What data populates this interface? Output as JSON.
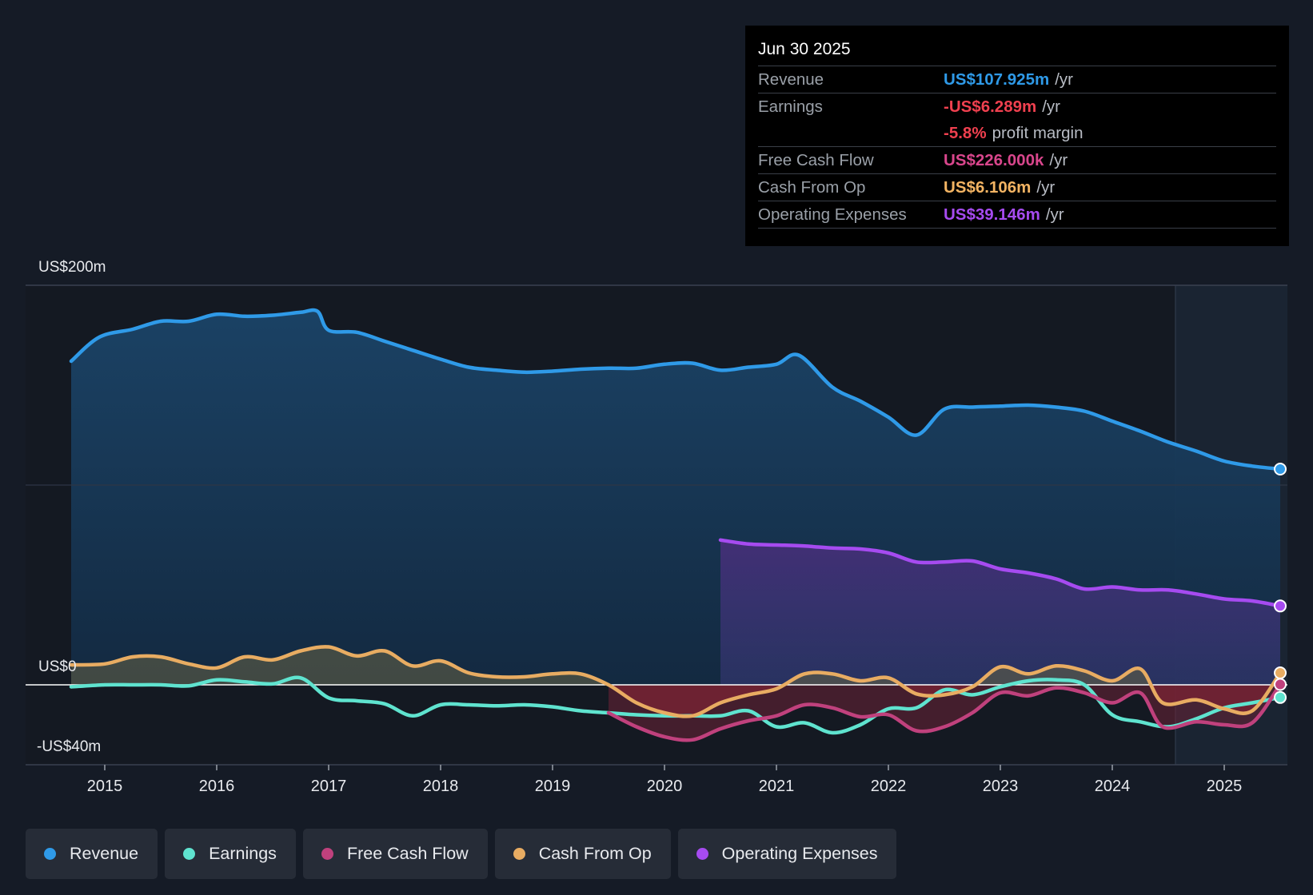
{
  "tooltip": {
    "date": "Jun 30 2025",
    "rows": [
      {
        "label": "Revenue",
        "value": "US$107.925m",
        "unit": "/yr",
        "color": "#2f9ae8"
      },
      {
        "label": "Earnings",
        "value": "-US$6.289m",
        "unit": "/yr",
        "color": "#f0404f"
      },
      {
        "label": "",
        "value": "-5.8%",
        "unit": "profit margin",
        "color": "#f0404f"
      },
      {
        "label": "Free Cash Flow",
        "value": "US$226.000k",
        "unit": "/yr",
        "color": "#d9468c"
      },
      {
        "label": "Cash From Op",
        "value": "US$6.106m",
        "unit": "/yr",
        "color": "#f3b463"
      },
      {
        "label": "Operating Expenses",
        "value": "US$39.146m",
        "unit": "/yr",
        "color": "#a64bf0"
      }
    ]
  },
  "legend": [
    {
      "label": "Revenue",
      "color": "#2f9ae8"
    },
    {
      "label": "Earnings",
      "color": "#5fe3cf"
    },
    {
      "label": "Free Cash Flow",
      "color": "#c0417d"
    },
    {
      "label": "Cash From Op",
      "color": "#e8ac62"
    },
    {
      "label": "Operating Expenses",
      "color": "#a64bf0"
    }
  ],
  "chart_data": {
    "type": "line",
    "title": "",
    "xlabel": "",
    "ylabel": "",
    "ylim": [
      -40,
      200
    ],
    "xlim": [
      2014.5,
      2025.5
    ],
    "y_tick_labels": [
      "US$200m",
      "US$0",
      "-US$40m"
    ],
    "x_tick_labels": [
      "2015",
      "2016",
      "2017",
      "2018",
      "2019",
      "2020",
      "2021",
      "2022",
      "2023",
      "2024",
      "2025"
    ],
    "forecast_start": 2024.5,
    "series": [
      {
        "name": "Revenue",
        "color": "#2f9ae8",
        "area": true,
        "points": [
          [
            2014.7,
            162
          ],
          [
            2014.95,
            174
          ],
          [
            2015.25,
            178
          ],
          [
            2015.5,
            182
          ],
          [
            2015.75,
            182
          ],
          [
            2016.0,
            185.5
          ],
          [
            2016.25,
            184.5
          ],
          [
            2016.5,
            185
          ],
          [
            2016.75,
            186.5
          ],
          [
            2016.9,
            187
          ],
          [
            2017.0,
            177.5
          ],
          [
            2017.25,
            176.5
          ],
          [
            2017.5,
            172
          ],
          [
            2017.75,
            167.5
          ],
          [
            2018.0,
            163
          ],
          [
            2018.25,
            159
          ],
          [
            2018.5,
            157.5
          ],
          [
            2018.75,
            156.5
          ],
          [
            2019.0,
            157
          ],
          [
            2019.25,
            158
          ],
          [
            2019.5,
            158.5
          ],
          [
            2019.75,
            158.5
          ],
          [
            2020.0,
            160.5
          ],
          [
            2020.25,
            161
          ],
          [
            2020.5,
            157.5
          ],
          [
            2020.75,
            159
          ],
          [
            2021.0,
            160.5
          ],
          [
            2021.2,
            165
          ],
          [
            2021.5,
            149
          ],
          [
            2021.75,
            142
          ],
          [
            2022.0,
            134
          ],
          [
            2022.25,
            125
          ],
          [
            2022.5,
            138
          ],
          [
            2022.75,
            139
          ],
          [
            2023.0,
            139.5
          ],
          [
            2023.25,
            140
          ],
          [
            2023.5,
            139
          ],
          [
            2023.75,
            137
          ],
          [
            2024.0,
            132
          ],
          [
            2024.25,
            127
          ],
          [
            2024.5,
            121.5
          ],
          [
            2024.75,
            117
          ],
          [
            2025.0,
            112
          ],
          [
            2025.25,
            109.5
          ],
          [
            2025.5,
            108
          ]
        ]
      },
      {
        "name": "Operating Expenses",
        "color": "#a64bf0",
        "area": true,
        "points": [
          [
            2020.5,
            72.5
          ],
          [
            2020.75,
            70.5
          ],
          [
            2021.0,
            70
          ],
          [
            2021.25,
            69.5
          ],
          [
            2021.5,
            68.5
          ],
          [
            2021.75,
            68
          ],
          [
            2022.0,
            66
          ],
          [
            2022.25,
            61.5
          ],
          [
            2022.5,
            61.5
          ],
          [
            2022.75,
            62
          ],
          [
            2023.0,
            58
          ],
          [
            2023.25,
            56
          ],
          [
            2023.5,
            53
          ],
          [
            2023.75,
            48
          ],
          [
            2024.0,
            49
          ],
          [
            2024.25,
            47.5
          ],
          [
            2024.5,
            47.5
          ],
          [
            2024.75,
            45.5
          ],
          [
            2025.0,
            43
          ],
          [
            2025.25,
            42
          ],
          [
            2025.5,
            39.5
          ]
        ]
      },
      {
        "name": "Cash From Op",
        "color": "#e8ac62",
        "area": true,
        "points": [
          [
            2014.7,
            10
          ],
          [
            2015.0,
            10.5
          ],
          [
            2015.25,
            14
          ],
          [
            2015.5,
            14
          ],
          [
            2015.75,
            10.5
          ],
          [
            2016.0,
            8.5
          ],
          [
            2016.25,
            14
          ],
          [
            2016.5,
            12.5
          ],
          [
            2016.75,
            17
          ],
          [
            2017.0,
            19
          ],
          [
            2017.25,
            14.5
          ],
          [
            2017.5,
            17
          ],
          [
            2017.75,
            9.5
          ],
          [
            2018.0,
            12
          ],
          [
            2018.25,
            6
          ],
          [
            2018.5,
            4
          ],
          [
            2018.75,
            4
          ],
          [
            2019.0,
            5.5
          ],
          [
            2019.25,
            5.5
          ],
          [
            2019.5,
            0
          ],
          [
            2019.75,
            -9
          ],
          [
            2020.0,
            -14
          ],
          [
            2020.25,
            -15.5
          ],
          [
            2020.5,
            -9
          ],
          [
            2020.75,
            -5
          ],
          [
            2021.0,
            -2
          ],
          [
            2021.25,
            5.5
          ],
          [
            2021.5,
            5.5
          ],
          [
            2021.75,
            2
          ],
          [
            2022.0,
            3.5
          ],
          [
            2022.25,
            -4.5
          ],
          [
            2022.5,
            -5
          ],
          [
            2022.75,
            -1
          ],
          [
            2023.0,
            9
          ],
          [
            2023.25,
            5.5
          ],
          [
            2023.5,
            9.5
          ],
          [
            2023.75,
            7
          ],
          [
            2024.0,
            2
          ],
          [
            2024.25,
            8
          ],
          [
            2024.45,
            -9
          ],
          [
            2024.75,
            -7.5
          ],
          [
            2025.0,
            -12
          ],
          [
            2025.25,
            -13
          ],
          [
            2025.5,
            6
          ]
        ]
      },
      {
        "name": "Free Cash Flow",
        "color": "#c0417d",
        "area": true,
        "points": [
          [
            2019.5,
            -14
          ],
          [
            2019.75,
            -21
          ],
          [
            2020.0,
            -26
          ],
          [
            2020.25,
            -27.5
          ],
          [
            2020.5,
            -22
          ],
          [
            2020.75,
            -18
          ],
          [
            2021.0,
            -15.5
          ],
          [
            2021.25,
            -10
          ],
          [
            2021.5,
            -11.5
          ],
          [
            2021.75,
            -16
          ],
          [
            2022.0,
            -15
          ],
          [
            2022.25,
            -23
          ],
          [
            2022.5,
            -21
          ],
          [
            2022.75,
            -14
          ],
          [
            2023.0,
            -4
          ],
          [
            2023.25,
            -5.5
          ],
          [
            2023.5,
            -1.5
          ],
          [
            2023.75,
            -4
          ],
          [
            2024.0,
            -9
          ],
          [
            2024.25,
            -4
          ],
          [
            2024.45,
            -21
          ],
          [
            2024.75,
            -18.5
          ],
          [
            2025.0,
            -20
          ],
          [
            2025.25,
            -19
          ],
          [
            2025.5,
            0.2
          ]
        ]
      },
      {
        "name": "Earnings",
        "color": "#5fe3cf",
        "area": false,
        "points": [
          [
            2014.7,
            -1
          ],
          [
            2015.0,
            0
          ],
          [
            2015.25,
            0
          ],
          [
            2015.5,
            0
          ],
          [
            2015.75,
            -0.5
          ],
          [
            2016.0,
            2.5
          ],
          [
            2016.25,
            1.5
          ],
          [
            2016.5,
            0.5
          ],
          [
            2016.75,
            3.5
          ],
          [
            2017.0,
            -6.5
          ],
          [
            2017.25,
            -8
          ],
          [
            2017.5,
            -9.5
          ],
          [
            2017.75,
            -15.5
          ],
          [
            2018.0,
            -10
          ],
          [
            2018.25,
            -10
          ],
          [
            2018.5,
            -10.5
          ],
          [
            2018.75,
            -10
          ],
          [
            2019.0,
            -11
          ],
          [
            2019.25,
            -13
          ],
          [
            2019.5,
            -14
          ],
          [
            2019.75,
            -15
          ],
          [
            2020.0,
            -15.5
          ],
          [
            2020.25,
            -15.5
          ],
          [
            2020.5,
            -15.5
          ],
          [
            2020.75,
            -13
          ],
          [
            2021.0,
            -21
          ],
          [
            2021.25,
            -19
          ],
          [
            2021.5,
            -24
          ],
          [
            2021.75,
            -20
          ],
          [
            2022.0,
            -12
          ],
          [
            2022.25,
            -11.5
          ],
          [
            2022.5,
            -2.5
          ],
          [
            2022.75,
            -5
          ],
          [
            2023.0,
            -1
          ],
          [
            2023.25,
            2
          ],
          [
            2023.5,
            2.5
          ],
          [
            2023.75,
            0
          ],
          [
            2024.0,
            -15
          ],
          [
            2024.25,
            -18.5
          ],
          [
            2024.5,
            -21
          ],
          [
            2024.75,
            -17
          ],
          [
            2025.0,
            -11.5
          ],
          [
            2025.25,
            -9
          ],
          [
            2025.5,
            -6.3
          ]
        ]
      }
    ]
  }
}
